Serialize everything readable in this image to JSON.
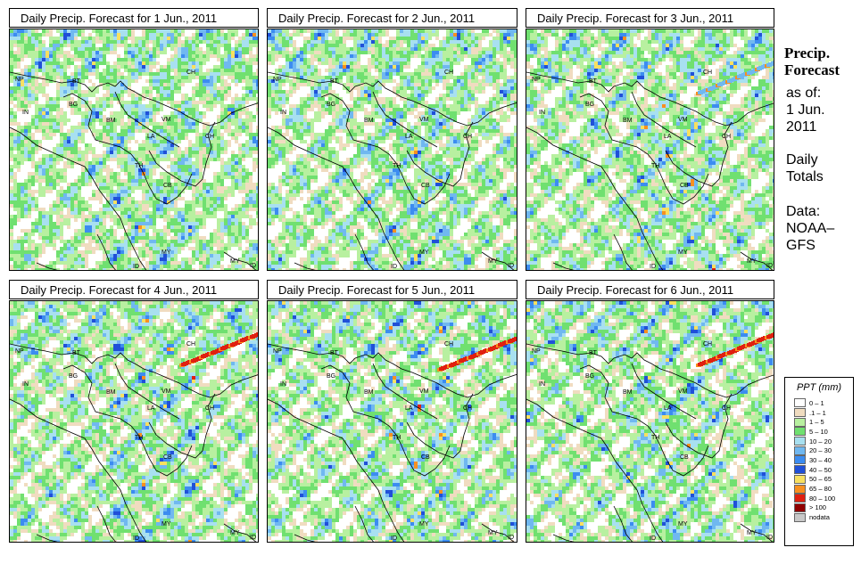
{
  "panels": [
    {
      "title": "Daily Precip. Forecast for  1 Jun., 2011"
    },
    {
      "title": "Daily Precip. Forecast for  2 Jun., 2011"
    },
    {
      "title": "Daily Precip. Forecast for  3 Jun., 2011"
    },
    {
      "title": "Daily Precip. Forecast for  4 Jun., 2011"
    },
    {
      "title": "Daily Precip. Forecast for  5 Jun., 2011"
    },
    {
      "title": "Daily Precip. Forecast for  6 Jun., 2011"
    }
  ],
  "map_labels": {
    "NP": "NP",
    "BT": "BT",
    "BG": "BG",
    "IN": "IN",
    "CH": "CH",
    "BM": "BM",
    "VM": "VM",
    "LA": "LA",
    "CH2": "CH",
    "TH": "TH",
    "CB": "CB",
    "MY": "MY",
    "MY2": "MY",
    "ID": "ID",
    "ID2": "ID"
  },
  "sidebar": {
    "title_line1": "Precip.",
    "title_line2": "Forecast",
    "asof_line1": "as of:",
    "asof_line2": "1 Jun.",
    "asof_line3": "2011",
    "type_line1": "Daily",
    "type_line2": "Totals",
    "source_line1": "Data:",
    "source_line2": "NOAA–",
    "source_line3": "GFS"
  },
  "legend": {
    "title": "PPT (mm)",
    "entries": [
      {
        "label": "0 – 1",
        "color": "#ffffff"
      },
      {
        "label": ".1 – 1",
        "color": "#f0dcc0"
      },
      {
        "label": "1 – 5",
        "color": "#b8f0a0"
      },
      {
        "label": "5 – 10",
        "color": "#70e070"
      },
      {
        "label": "10 – 20",
        "color": "#a8e0f0"
      },
      {
        "label": "20 – 30",
        "color": "#70b8f0"
      },
      {
        "label": "30 – 40",
        "color": "#3c8cf0"
      },
      {
        "label": "40 – 50",
        "color": "#2050d8"
      },
      {
        "label": "50 – 65",
        "color": "#f8e060"
      },
      {
        "label": "65 – 80",
        "color": "#f89020"
      },
      {
        "label": "80 – 100",
        "color": "#e02010"
      },
      {
        "label": "> 100",
        "color": "#900000"
      },
      {
        "label": "nodata",
        "color": "#c8c8c8"
      }
    ]
  }
}
